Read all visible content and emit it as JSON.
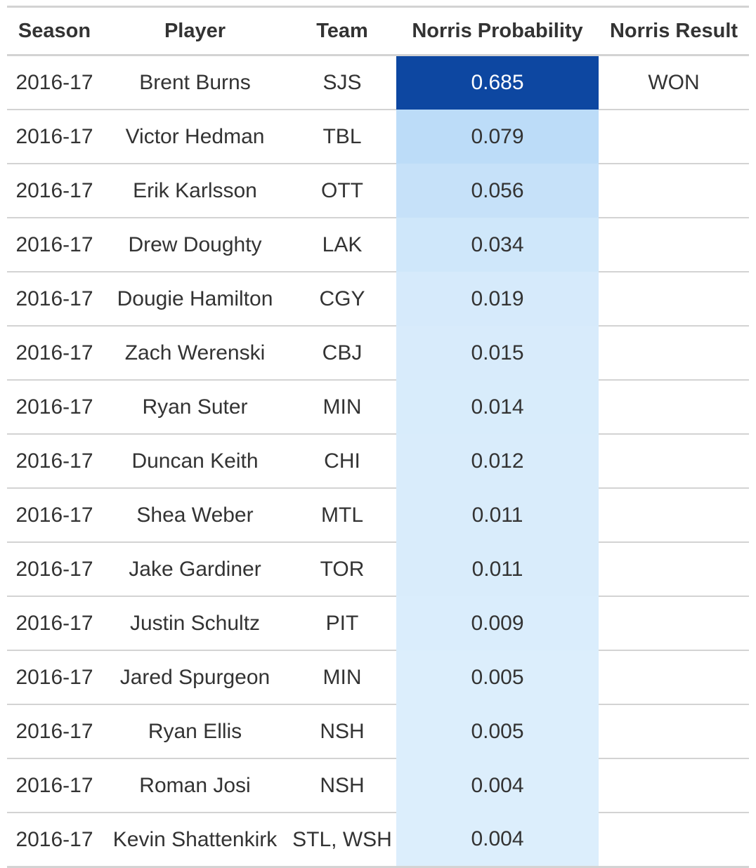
{
  "columns": {
    "season": "Season",
    "player": "Player",
    "team": "Team",
    "probability": "Norris Probability",
    "result": "Norris Result"
  },
  "colors": {
    "low": "#deeffc",
    "mid": "#bcdcf8",
    "high": "#0d47a1",
    "text_dark": "#333333",
    "text_light": "#ffffff",
    "border": "#d3d3d3"
  },
  "chart_data": {
    "type": "table",
    "columns": [
      "Season",
      "Player",
      "Team",
      "Norris Probability",
      "Norris Result"
    ],
    "rows": [
      {
        "season": "2016-17",
        "player": "Brent Burns",
        "team": "SJS",
        "probability": "0.685",
        "result": "WON"
      },
      {
        "season": "2016-17",
        "player": "Victor Hedman",
        "team": "TBL",
        "probability": "0.079",
        "result": ""
      },
      {
        "season": "2016-17",
        "player": "Erik Karlsson",
        "team": "OTT",
        "probability": "0.056",
        "result": ""
      },
      {
        "season": "2016-17",
        "player": "Drew Doughty",
        "team": "LAK",
        "probability": "0.034",
        "result": ""
      },
      {
        "season": "2016-17",
        "player": "Dougie Hamilton",
        "team": "CGY",
        "probability": "0.019",
        "result": ""
      },
      {
        "season": "2016-17",
        "player": "Zach Werenski",
        "team": "CBJ",
        "probability": "0.015",
        "result": ""
      },
      {
        "season": "2016-17",
        "player": "Ryan Suter",
        "team": "MIN",
        "probability": "0.014",
        "result": ""
      },
      {
        "season": "2016-17",
        "player": "Duncan Keith",
        "team": "CHI",
        "probability": "0.012",
        "result": ""
      },
      {
        "season": "2016-17",
        "player": "Shea Weber",
        "team": "MTL",
        "probability": "0.011",
        "result": ""
      },
      {
        "season": "2016-17",
        "player": "Jake Gardiner",
        "team": "TOR",
        "probability": "0.011",
        "result": ""
      },
      {
        "season": "2016-17",
        "player": "Justin Schultz",
        "team": "PIT",
        "probability": "0.009",
        "result": ""
      },
      {
        "season": "2016-17",
        "player": "Jared Spurgeon",
        "team": "MIN",
        "probability": "0.005",
        "result": ""
      },
      {
        "season": "2016-17",
        "player": "Ryan Ellis",
        "team": "NSH",
        "probability": "0.005",
        "result": ""
      },
      {
        "season": "2016-17",
        "player": "Roman Josi",
        "team": "NSH",
        "probability": "0.004",
        "result": ""
      },
      {
        "season": "2016-17",
        "player": "Kevin Shattenkirk",
        "team": "STL, WSH",
        "probability": "0.004",
        "result": ""
      }
    ]
  }
}
